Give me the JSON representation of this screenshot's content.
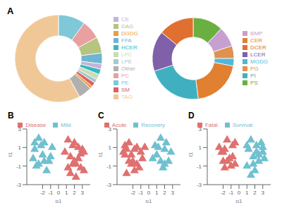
{
  "chart_data": [
    {
      "type": "pie",
      "title": "A",
      "categories": [
        "PE",
        "PC",
        "DAG",
        "FFA",
        "CE",
        "HCER",
        "LPC",
        "LPE",
        "SM",
        "DGDG",
        "Other",
        "TAG"
      ],
      "values": [
        10,
        7,
        6,
        4,
        2,
        2,
        2,
        1.5,
        1.5,
        1,
        5,
        58
      ],
      "colors": [
        "#7ec8d8",
        "#e8a0a0",
        "#b5c480",
        "#6eb5d4",
        "#c4b3d8",
        "#3ab8c0",
        "#c8deb0",
        "#a8c8d0",
        "#e06060",
        "#e8a040",
        "#b0b0b0",
        "#f0c898"
      ],
      "legend": "right"
    },
    {
      "type": "pie",
      "categories": [
        "PS",
        "BMP",
        "PG",
        "MGDG",
        "CER",
        "PI",
        "LCER",
        "DCER"
      ],
      "values": [
        12,
        8,
        5,
        3,
        20,
        22,
        16,
        14
      ],
      "colors": [
        "#6ab040",
        "#c8a0d0",
        "#e09050",
        "#50b8d8",
        "#e08030",
        "#40b0c0",
        "#8060a8",
        "#e07030"
      ],
      "legend": "right"
    },
    {
      "type": "scatter",
      "title": "B",
      "x_label": "p1",
      "y_label": "t1",
      "xlim": [
        -4,
        4
      ],
      "ylim": [
        -3,
        3
      ],
      "xticks": [
        -2,
        -1,
        0,
        1,
        2,
        3
      ],
      "yticks": [
        -3,
        -1,
        1,
        3
      ],
      "grid": false,
      "legend": "top",
      "marker": "triangle",
      "series": [
        {
          "name": "Disease",
          "color": "#e07070",
          "values": [
            [
              1.2,
              1.8
            ],
            [
              2.0,
              1.5
            ],
            [
              3.0,
              0.8
            ],
            [
              2.5,
              -0.2
            ],
            [
              1.8,
              -0.8
            ],
            [
              2.8,
              -1.2
            ],
            [
              1.5,
              -1.8
            ],
            [
              2.2,
              -2.2
            ],
            [
              3.2,
              -1.5
            ],
            [
              0.8,
              0.5
            ],
            [
              1.5,
              0.0
            ],
            [
              2.8,
              0.3
            ],
            [
              2.0,
              -0.5
            ],
            [
              1.2,
              -1.2
            ],
            [
              2.5,
              1.0
            ],
            [
              3.2,
              0.5
            ],
            [
              1.8,
              1.2
            ],
            [
              2.2,
              -0.8
            ]
          ]
        },
        {
          "name": "Mild",
          "color": "#70c0d0",
          "values": [
            [
              -2.5,
              2.0
            ],
            [
              -1.8,
              1.5
            ],
            [
              -3.0,
              0.8
            ],
            [
              -2.0,
              0.2
            ],
            [
              -1.2,
              -0.5
            ],
            [
              -2.8,
              -1.0
            ],
            [
              -1.5,
              -1.5
            ],
            [
              -3.2,
              -0.2
            ],
            [
              -0.8,
              1.0
            ],
            [
              -2.2,
              1.2
            ],
            [
              -1.0,
              0.0
            ],
            [
              -2.5,
              -0.8
            ],
            [
              -3.0,
              1.5
            ],
            [
              -1.8,
              -0.5
            ]
          ]
        }
      ]
    },
    {
      "type": "scatter",
      "title": "C",
      "x_label": "p1",
      "y_label": "t1",
      "xlim": [
        -4,
        4
      ],
      "ylim": [
        -3,
        3
      ],
      "xticks": [
        -2,
        -1,
        0,
        1,
        2,
        3
      ],
      "yticks": [
        -3,
        -1,
        1,
        3
      ],
      "grid": false,
      "legend": "top",
      "marker": "triangle",
      "series": [
        {
          "name": "Acute",
          "color": "#e07070",
          "values": [
            [
              -2.5,
              1.5
            ],
            [
              -1.8,
              0.8
            ],
            [
              -3.0,
              0.2
            ],
            [
              -2.0,
              -0.5
            ],
            [
              -1.2,
              -1.2
            ],
            [
              -2.8,
              -1.8
            ],
            [
              -1.5,
              1.0
            ],
            [
              -3.2,
              0.5
            ],
            [
              -0.8,
              -0.2
            ],
            [
              -2.2,
              -0.8
            ],
            [
              -1.0,
              0.5
            ],
            [
              -2.5,
              -0.5
            ],
            [
              -3.0,
              1.2
            ],
            [
              -1.8,
              -1.5
            ],
            [
              -2.2,
              0.2
            ],
            [
              -1.5,
              -0.8
            ],
            [
              -2.8,
              0.8
            ],
            [
              -0.5,
              1.0
            ]
          ]
        },
        {
          "name": "Recovery",
          "color": "#70c0d0",
          "values": [
            [
              1.5,
              2.0
            ],
            [
              2.0,
              0.8
            ],
            [
              1.0,
              0.2
            ],
            [
              2.5,
              -0.5
            ],
            [
              1.8,
              -1.2
            ],
            [
              0.8,
              1.2
            ],
            [
              2.2,
              1.5
            ],
            [
              1.5,
              -0.5
            ],
            [
              2.8,
              0.5
            ],
            [
              0.5,
              -0.2
            ],
            [
              1.2,
              1.0
            ],
            [
              2.0,
              -0.8
            ]
          ]
        }
      ]
    },
    {
      "type": "scatter",
      "title": "D",
      "x_label": "p1",
      "y_label": "t1",
      "xlim": [
        -4,
        4
      ],
      "ylim": [
        -3,
        3
      ],
      "xticks": [
        -2,
        -1,
        0,
        1,
        2,
        3
      ],
      "yticks": [
        -3,
        -1,
        1,
        3
      ],
      "grid": false,
      "legend": "top",
      "marker": "triangle",
      "series": [
        {
          "name": "Fatal",
          "color": "#e07070",
          "values": [
            [
              -1.5,
              1.8
            ],
            [
              -0.8,
              1.2
            ],
            [
              -2.0,
              0.5
            ],
            [
              -1.2,
              -0.2
            ],
            [
              -0.5,
              -0.8
            ],
            [
              -1.8,
              -1.2
            ],
            [
              -2.5,
              1.0
            ],
            [
              -0.8,
              0.0
            ],
            [
              -1.5,
              -0.5
            ],
            [
              -2.2,
              0.5
            ],
            [
              -0.5,
              1.5
            ],
            [
              -1.8,
              0.8
            ],
            [
              -1.0,
              -1.0
            ],
            [
              -2.0,
              -0.5
            ]
          ]
        },
        {
          "name": "Survival",
          "color": "#70c0d0",
          "values": [
            [
              1.5,
              1.8
            ],
            [
              2.2,
              1.2
            ],
            [
              3.0,
              0.5
            ],
            [
              1.8,
              0.0
            ],
            [
              2.5,
              -0.5
            ],
            [
              1.0,
              -1.0
            ],
            [
              2.0,
              -1.5
            ],
            [
              3.2,
              -0.2
            ],
            [
              1.2,
              0.8
            ],
            [
              2.8,
              1.5
            ],
            [
              1.5,
              -2.0
            ],
            [
              2.2,
              0.5
            ],
            [
              3.0,
              1.0
            ],
            [
              1.8,
              -0.8
            ],
            [
              2.5,
              0.2
            ],
            [
              1.0,
              1.2
            ]
          ]
        }
      ]
    }
  ]
}
